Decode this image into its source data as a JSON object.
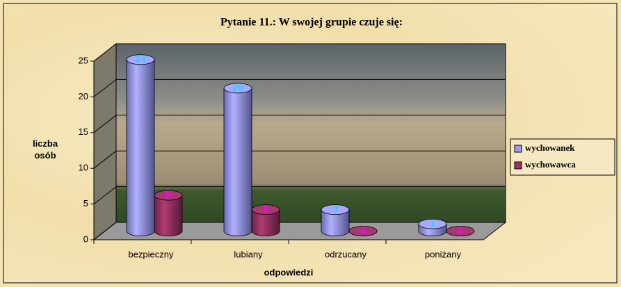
{
  "chart_data": {
    "type": "bar3d",
    "title": "Pytanie 11.: W swojej grupie czuje się:",
    "x_label": "odpowiedzi",
    "y_label": "liczba osób",
    "categories": [
      "bezpieczny",
      "lubiany",
      "odrzucany",
      "poniżany"
    ],
    "series": [
      {
        "name": "wychowanek",
        "color": "#9999ff",
        "label_color": "#33ccff",
        "values": [
          24,
          20,
          3,
          1
        ]
      },
      {
        "name": "wychowawca",
        "color": "#993366",
        "label_color": "#ff00ff",
        "values": [
          5,
          3,
          0,
          0
        ]
      }
    ],
    "ylim": [
      0,
      25
    ],
    "yticks": [
      0,
      5,
      10,
      15,
      20,
      25
    ],
    "grid": true,
    "legend": "right"
  }
}
